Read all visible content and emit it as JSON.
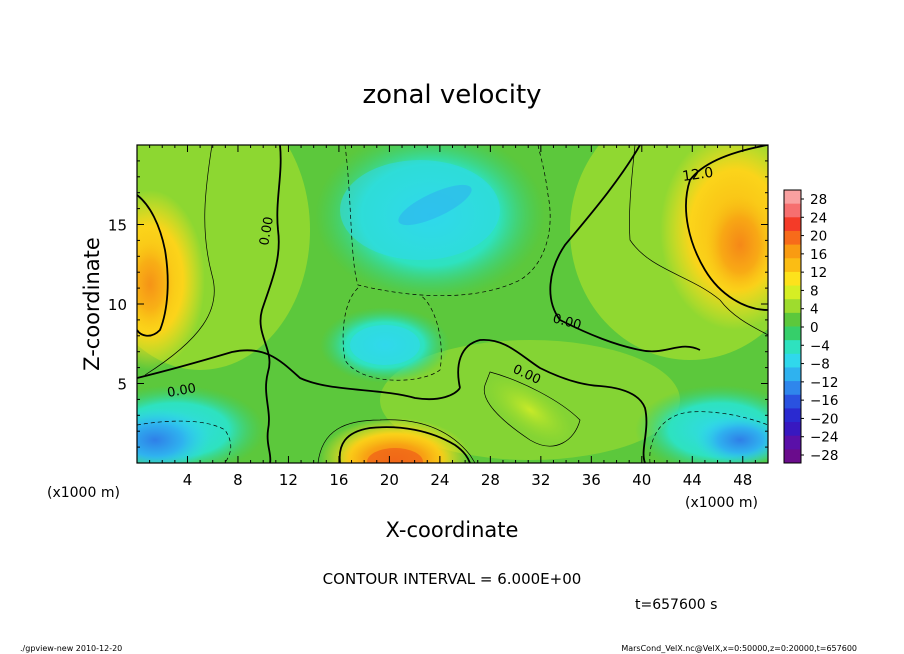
{
  "chart_data": {
    "type": "heatmap",
    "title": "zonal velocity",
    "xlabel": "X-coordinate",
    "ylabel": "Z-coordinate",
    "x_unit_left": "(x1000 m)",
    "x_unit_right": "(x1000 m)",
    "xlim": [
      0,
      50
    ],
    "ylim": [
      0,
      20
    ],
    "x_ticks": [
      "4",
      "8",
      "12",
      "16",
      "20",
      "24",
      "28",
      "32",
      "36",
      "40",
      "44",
      "48"
    ],
    "y_ticks": [
      "5",
      "10",
      "15"
    ],
    "colorbar_labels": [
      "28",
      "24",
      "20",
      "16",
      "12",
      "8",
      "4",
      "0",
      "−4",
      "−8",
      "−12",
      "−16",
      "−20",
      "−24",
      "−28"
    ],
    "colorbar_colors": [
      "#f9a0a0",
      "#f66f6f",
      "#f43b28",
      "#f76b1a",
      "#f99b12",
      "#fbbd14",
      "#fde21c",
      "#d6ee24",
      "#9edc2e",
      "#5cc83c",
      "#36cf6a",
      "#2ee2bf",
      "#30d8ec",
      "#2fb2ef",
      "#2f86ec",
      "#2a52e0",
      "#2a2ad0",
      "#3818c0",
      "#5a10a8",
      "#6a0c8c"
    ],
    "contour_labels": [
      "12.0",
      "0.00",
      "0.00",
      "0.00",
      "0.00"
    ],
    "contour_interval": "CONTOUR INTERVAL = 6.000E+00",
    "time": "t=657600 s",
    "series": [
      {
        "name": "",
        "values": [
          {
            "x": 20,
            "y": 1.0,
            "v": 18
          },
          {
            "x": 47,
            "y": 1.5,
            "v": -14
          },
          {
            "x": 1,
            "y": 1.5,
            "v": -12
          },
          {
            "x": 2,
            "y": 11,
            "v": 14
          },
          {
            "x": 47,
            "y": 15,
            "v": 14
          },
          {
            "x": 23,
            "y": 17,
            "v": -10
          },
          {
            "x": 19,
            "y": 7,
            "v": -9
          },
          {
            "x": 31,
            "y": 5,
            "v": 6
          }
        ]
      }
    ]
  },
  "footer": {
    "left": "./gpview-new  2010-12-20",
    "right": "MarsCond_VelX.nc@VelX,x=0:50000,z=0:20000,t=657600"
  }
}
